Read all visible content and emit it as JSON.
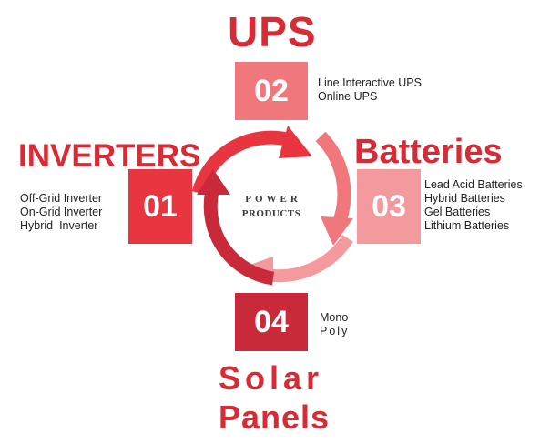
{
  "colors": {
    "ups_box": "#f0777b",
    "inverter_box": "#e8353f",
    "battery_box": "#f49a9e",
    "solar_box": "#c92a3a",
    "heading_red": "#d72b36"
  },
  "ups": {
    "title": "UPS",
    "number": "02",
    "items": [
      "Line Interactive UPS",
      "Online UPS"
    ]
  },
  "inverters": {
    "title": "INVERTERS",
    "number": "01",
    "items": [
      "Off-Grid Inverter",
      "On-Grid Inverter",
      "Hybrid  Inverter"
    ]
  },
  "batteries": {
    "title": "Batteries",
    "number": "03",
    "items": [
      "Lead Acid Batteries",
      "Hybrid Batteries",
      "Gel Batteries",
      "Lithium Batteries"
    ]
  },
  "solar": {
    "title_line1": "Solar",
    "title_line2": "Panels",
    "number": "04",
    "items": [
      "Mono",
      "Poly"
    ]
  },
  "center": {
    "line1": "POWER",
    "line2": "PRODUCTS"
  }
}
